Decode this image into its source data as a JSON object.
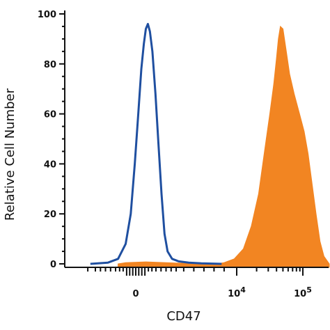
{
  "chart_data": {
    "type": "area",
    "xlabel": "CD47",
    "ylabel": "Relative Cell Number",
    "ylim": [
      0,
      100
    ],
    "y_ticks": [
      0,
      20,
      40,
      60,
      80,
      100
    ],
    "y_tick_labels": [
      "0",
      "20",
      "40",
      "60",
      "80",
      "100"
    ],
    "x_scale": "biexponential",
    "x_tick_labels": [
      {
        "base": "0",
        "exp": ""
      },
      {
        "base": "10",
        "exp": "4"
      },
      {
        "base": "10",
        "exp": "5"
      }
    ],
    "grid": false,
    "series": [
      {
        "style": "outline",
        "color": "#1f4fa0",
        "points": [
          [
            -0.9,
            0
          ],
          [
            -0.55,
            0.5
          ],
          [
            -0.35,
            2
          ],
          [
            -0.2,
            8
          ],
          [
            -0.1,
            20
          ],
          [
            -0.02,
            40
          ],
          [
            0.05,
            60
          ],
          [
            0.11,
            78
          ],
          [
            0.16,
            88
          ],
          [
            0.2,
            94
          ],
          [
            0.24,
            96
          ],
          [
            0.28,
            93
          ],
          [
            0.33,
            85
          ],
          [
            0.39,
            68
          ],
          [
            0.45,
            48
          ],
          [
            0.51,
            28
          ],
          [
            0.57,
            12
          ],
          [
            0.63,
            5
          ],
          [
            0.72,
            2
          ],
          [
            0.85,
            1
          ],
          [
            1.05,
            0.5
          ],
          [
            1.3,
            0.2
          ],
          [
            1.7,
            0
          ]
        ]
      },
      {
        "style": "filled",
        "color": "#f28522",
        "points": [
          [
            -0.35,
            0
          ],
          [
            -0.2,
            0.5
          ],
          [
            0.2,
            0.8
          ],
          [
            0.6,
            0.5
          ],
          [
            1.0,
            0.2
          ],
          [
            1.6,
            0
          ],
          [
            1.75,
            0.5
          ],
          [
            1.95,
            2
          ],
          [
            2.1,
            6
          ],
          [
            2.22,
            15
          ],
          [
            2.33,
            28
          ],
          [
            2.42,
            45
          ],
          [
            2.5,
            60
          ],
          [
            2.56,
            72
          ],
          [
            2.6,
            82
          ],
          [
            2.63,
            90
          ],
          [
            2.66,
            95
          ],
          [
            2.7,
            94
          ],
          [
            2.75,
            85
          ],
          [
            2.8,
            76
          ],
          [
            2.87,
            68
          ],
          [
            2.95,
            60
          ],
          [
            3.02,
            53
          ],
          [
            3.08,
            44
          ],
          [
            3.14,
            32
          ],
          [
            3.2,
            20
          ],
          [
            3.26,
            9
          ],
          [
            3.32,
            3
          ],
          [
            3.4,
            0
          ]
        ]
      }
    ]
  }
}
